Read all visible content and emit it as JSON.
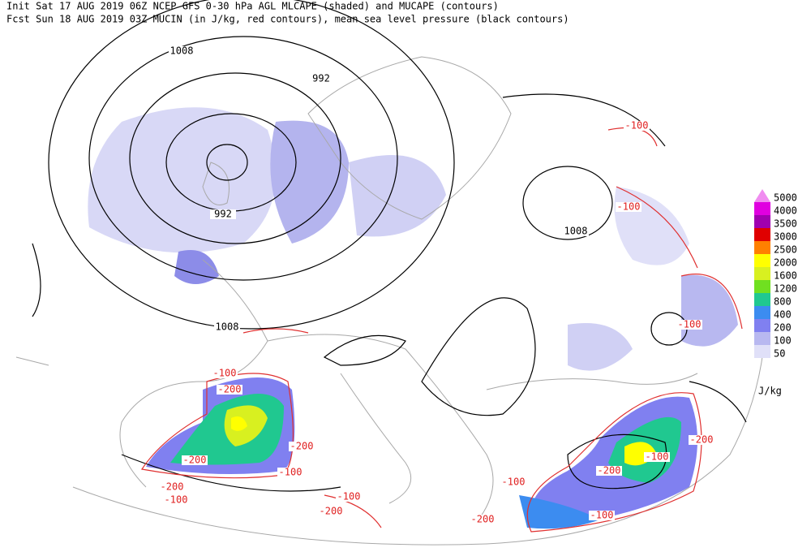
{
  "header": {
    "line1": "Init  Sat 17 AUG 2019 06Z  NCEP GFS 0-30 hPa AGL MLCAPE (shaded) and MUCAPE (contours)",
    "line2": "Fcst Sun 18 AUG 2019 03Z  MUCIN (in J/kg, red contours), mean sea level pressure (black contours)"
  },
  "contour_labels": [
    {
      "text": "1008",
      "color": "#000000"
    },
    {
      "text": "992",
      "color": "#000000"
    },
    {
      "text": "992",
      "color": "#000000"
    },
    {
      "text": "1008",
      "color": "#000000"
    },
    {
      "text": "1008",
      "color": "#000000"
    },
    {
      "text": "-100",
      "color": "#e02020"
    },
    {
      "text": "-100",
      "color": "#e02020"
    },
    {
      "text": "-100",
      "color": "#e02020"
    },
    {
      "text": "-200",
      "color": "#e02020"
    },
    {
      "text": "-200",
      "color": "#e02020"
    },
    {
      "text": "-200",
      "color": "#e02020"
    },
    {
      "text": "-100",
      "color": "#e02020"
    },
    {
      "text": "-200",
      "color": "#e02020"
    },
    {
      "text": "-100",
      "color": "#e02020"
    },
    {
      "text": "-100",
      "color": "#e02020"
    },
    {
      "text": "-200",
      "color": "#e02020"
    },
    {
      "text": "-100",
      "color": "#e02020"
    },
    {
      "text": "-200",
      "color": "#e02020"
    },
    {
      "text": "-200",
      "color": "#e02020"
    },
    {
      "text": "-100",
      "color": "#e02020"
    },
    {
      "text": "-100",
      "color": "#e02020"
    },
    {
      "text": "-200",
      "color": "#e02020"
    },
    {
      "text": "-100",
      "color": "#e02020"
    }
  ],
  "legend": {
    "unit": "J/kg",
    "items": [
      {
        "value": 5000,
        "color": "#f08cf0"
      },
      {
        "value": 4000,
        "color": "#e000e0"
      },
      {
        "value": 3500,
        "color": "#a000b0"
      },
      {
        "value": 3000,
        "color": "#e00000"
      },
      {
        "value": 2500,
        "color": "#ff8000"
      },
      {
        "value": 2000,
        "color": "#ffff00"
      },
      {
        "value": 1600,
        "color": "#d8f020"
      },
      {
        "value": 1200,
        "color": "#70e020"
      },
      {
        "value": 800,
        "color": "#20c890"
      },
      {
        "value": 400,
        "color": "#3c8cf0"
      },
      {
        "value": 200,
        "color": "#8080f0"
      },
      {
        "value": 100,
        "color": "#b8b8f0"
      },
      {
        "value": 50,
        "color": "#e0e0f8"
      }
    ]
  }
}
